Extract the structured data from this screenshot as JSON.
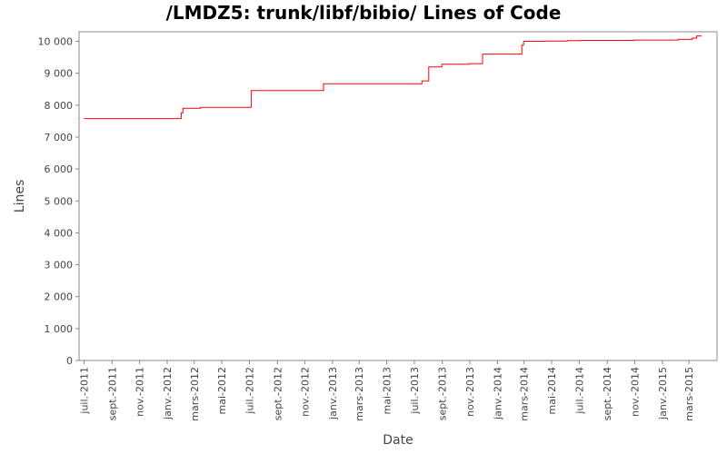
{
  "chart_data": {
    "type": "line",
    "title": "/LMDZ5: trunk/libf/bibio/ Lines of Code",
    "xlabel": "Date",
    "ylabel": "Lines",
    "ylim": [
      0,
      10300
    ],
    "yticks": [
      0,
      1000,
      2000,
      3000,
      4000,
      5000,
      6000,
      7000,
      8000,
      9000,
      10000
    ],
    "ytick_labels": [
      "0",
      "1 000",
      "2 000",
      "3 000",
      "4 000",
      "5 000",
      "6 000",
      "7 000",
      "8 000",
      "9 000",
      "10 000"
    ],
    "xlim": [
      "2011-06-20",
      "2015-05-02"
    ],
    "xticks": [
      "2011-07-01",
      "2011-09-01",
      "2011-11-01",
      "2012-01-01",
      "2012-03-01",
      "2012-05-01",
      "2012-07-01",
      "2012-09-01",
      "2012-11-01",
      "2013-01-01",
      "2013-03-01",
      "2013-05-01",
      "2013-07-01",
      "2013-09-01",
      "2013-11-01",
      "2014-01-01",
      "2014-03-01",
      "2014-05-01",
      "2014-07-01",
      "2014-09-01",
      "2014-11-01",
      "2015-01-01",
      "2015-03-01"
    ],
    "xtick_labels": [
      "juil.-2011",
      "sept.-2011",
      "nov.-2011",
      "janv.-2012",
      "mars-2012",
      "mai-2012",
      "juil.-2012",
      "sept.-2012",
      "nov.-2012",
      "janv.-2013",
      "mars-2013",
      "mai-2013",
      "juil.-2013",
      "sept.-2013",
      "nov.-2013",
      "janv.-2014",
      "mars-2014",
      "mai-2014",
      "juil.-2014",
      "sept.-2014",
      "nov.-2014",
      "janv.-2015",
      "mars-2015"
    ],
    "grid": false,
    "line_color": "#ff0000",
    "series": [
      {
        "step": true,
        "x": [
          "2011-07-01",
          "2012-02-01",
          "2012-02-05",
          "2012-03-15",
          "2012-07-05",
          "2012-12-12",
          "2013-07-18",
          "2013-08-02",
          "2013-08-31",
          "2013-10-30",
          "2013-11-29",
          "2014-02-24",
          "2014-02-28",
          "2014-04-15",
          "2014-06-05",
          "2014-07-05",
          "2014-10-30",
          "2015-02-05",
          "2015-03-08",
          "2015-03-18",
          "2015-03-28"
        ],
        "y": [
          7580,
          7760,
          7900,
          7930,
          8460,
          8670,
          8760,
          9200,
          9280,
          9300,
          9600,
          9880,
          10000,
          10010,
          10020,
          10030,
          10040,
          10060,
          10100,
          10170,
          10150
        ]
      }
    ]
  }
}
